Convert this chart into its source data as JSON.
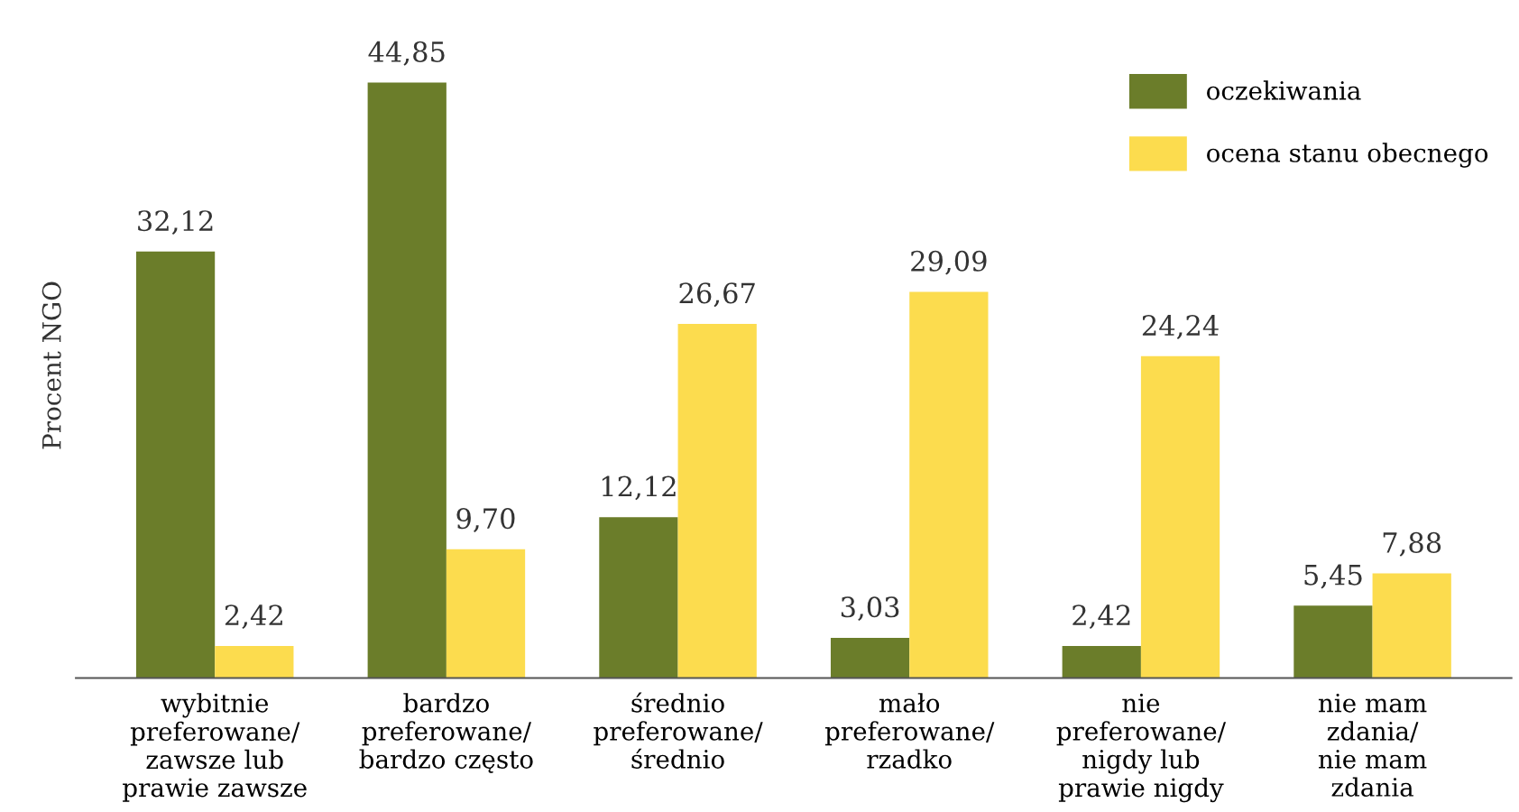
{
  "chart_data": {
    "type": "bar",
    "ylabel": "Procent NGO",
    "categories": [
      "wybitnie\npreferowane/\nzawsze lub\nprawie zawsze",
      "bardzo\npreferowane/\nbardzo często",
      "średnio\npreferowane/\nśrednio",
      "mało\npreferowane/\nrzadko",
      "nie\npreferowane/\nnigdy lub\nprawie nigdy",
      "nie mam\nzdania/\nnie mam\nzdania"
    ],
    "series": [
      {
        "name": "oczekiwania",
        "color": "#6b7d2a",
        "values": [
          32.12,
          44.85,
          12.12,
          3.03,
          2.42,
          5.45
        ],
        "value_labels": [
          "32,12",
          "44,85",
          "12,12",
          "3,03",
          "2,42",
          "5,45"
        ]
      },
      {
        "name": "ocena stanu obecnego",
        "color": "#fcdc4e",
        "values": [
          2.42,
          9.7,
          26.67,
          29.09,
          24.24,
          7.88
        ],
        "value_labels": [
          "2,42",
          "9,70",
          "26,67",
          "29,09",
          "24,24",
          "7,88"
        ]
      }
    ],
    "legend": "top right",
    "grid": false
  }
}
